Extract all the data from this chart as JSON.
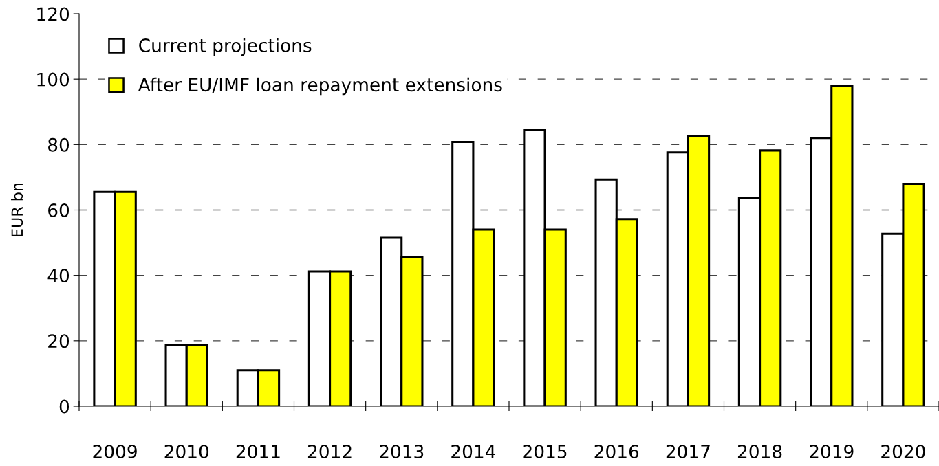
{
  "chart_data": {
    "type": "bar",
    "ylabel": "EUR bn",
    "categories": [
      "2009",
      "2010",
      "2011",
      "2012",
      "2013",
      "2014",
      "2015",
      "2016",
      "2017",
      "2018",
      "2019",
      "2020"
    ],
    "series": [
      {
        "name": "Current projections",
        "color": "#ffffff",
        "values": [
          65.5,
          18.8,
          11,
          41.2,
          51.5,
          80.8,
          84.6,
          69.3,
          77.6,
          63.6,
          82,
          52.7
        ]
      },
      {
        "name": "After EU/IMF loan repayment extensions",
        "color": "#ffff00",
        "values": [
          65.5,
          18.8,
          11,
          41.2,
          45.7,
          54,
          54,
          57.2,
          82.7,
          78.2,
          98,
          68
        ]
      }
    ],
    "ylim": [
      0,
      120
    ],
    "yticks": [
      0,
      20,
      40,
      60,
      80,
      100,
      120
    ],
    "grid": "y",
    "legend": "top left"
  }
}
